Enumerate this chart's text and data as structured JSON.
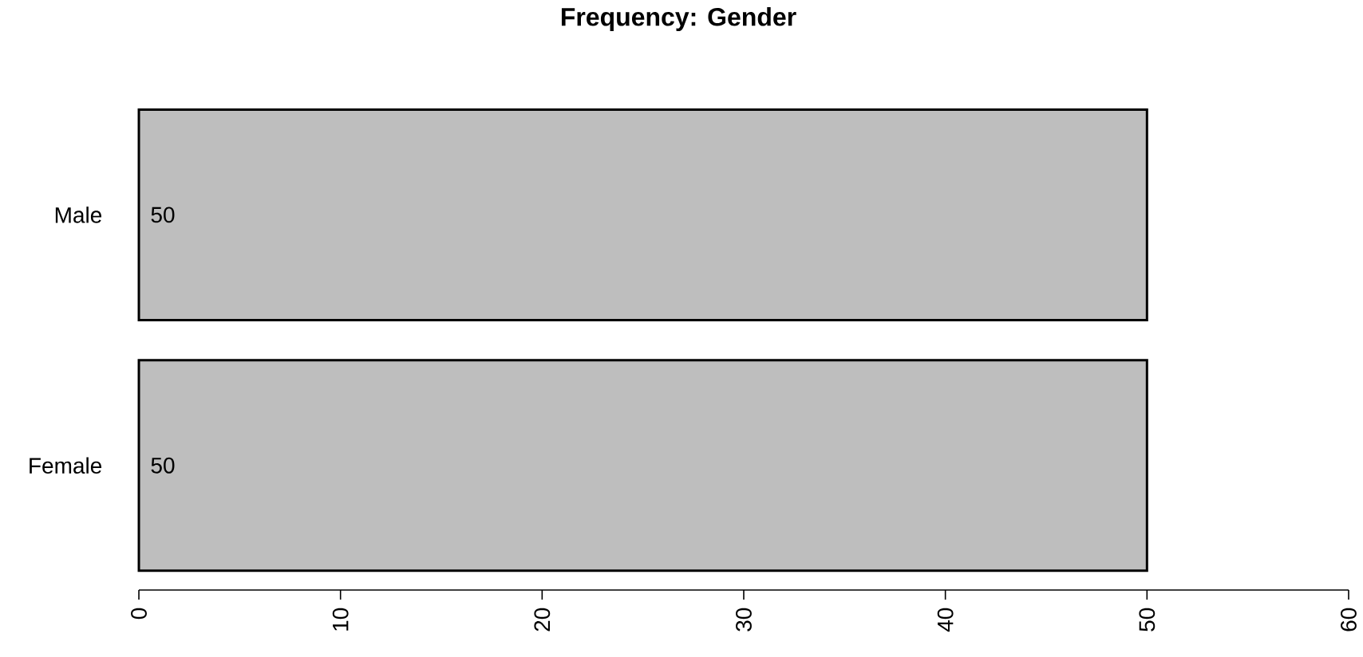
{
  "chart_data": {
    "type": "bar",
    "orientation": "horizontal",
    "title": "Frequency: Gender",
    "categories": [
      "Male",
      "Female"
    ],
    "values": [
      50,
      50
    ],
    "value_labels": [
      "50",
      "50"
    ],
    "color": "#bebebe",
    "xlim": [
      0,
      60
    ],
    "xticks": [
      0,
      10,
      20,
      30,
      40,
      50,
      60
    ]
  }
}
